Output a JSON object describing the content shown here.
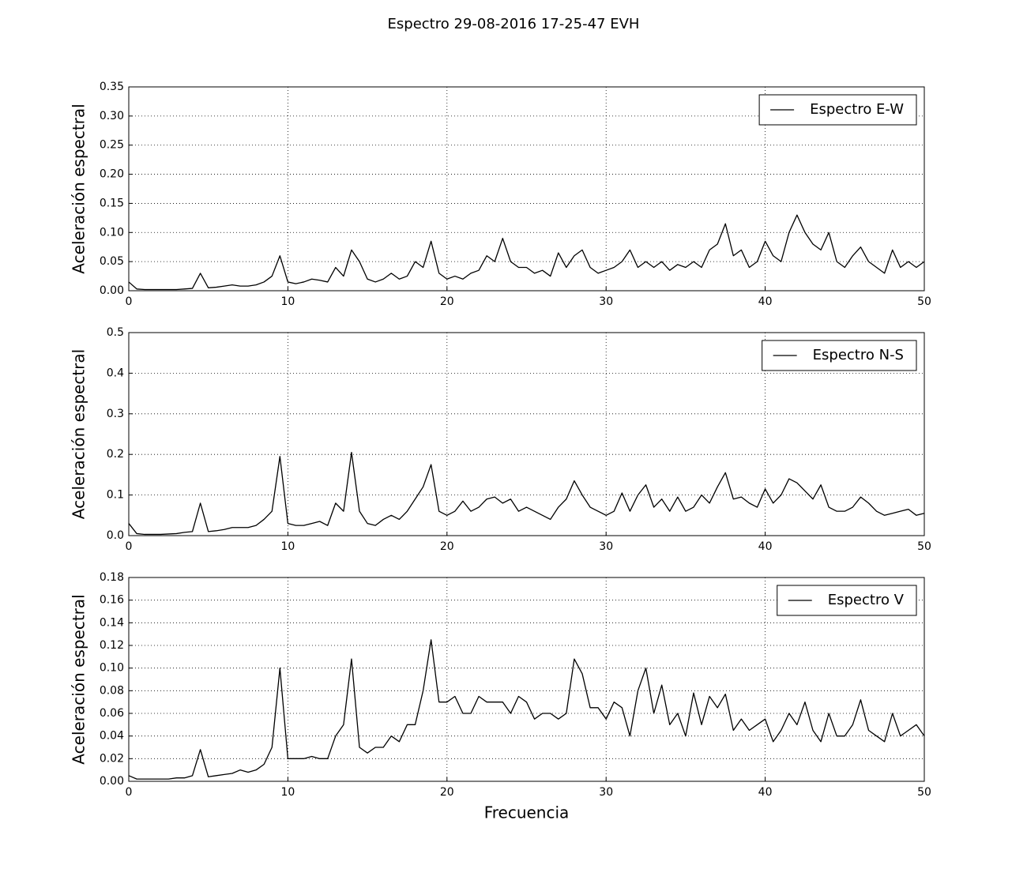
{
  "title": "Espectro 29-08-2016 17-25-47 EVH",
  "chart_data": [
    {
      "type": "line",
      "ylabel": "Aceleración espectral",
      "legend": "upper right",
      "grid": true,
      "x": [
        0,
        0.5,
        1,
        1.5,
        2,
        2.5,
        3,
        3.5,
        4,
        4.5,
        5,
        5.5,
        6,
        6.5,
        7,
        7.5,
        8,
        8.5,
        9,
        9.5,
        10,
        10.5,
        11,
        11.5,
        12,
        12.5,
        13,
        13.5,
        14,
        14.5,
        15,
        15.5,
        16,
        16.5,
        17,
        17.5,
        18,
        18.5,
        19,
        19.5,
        20,
        20.5,
        21,
        21.5,
        22,
        22.5,
        23,
        23.5,
        24,
        24.5,
        25,
        25.5,
        26,
        26.5,
        27,
        27.5,
        28,
        28.5,
        29,
        29.5,
        30,
        30.5,
        31,
        31.5,
        32,
        32.5,
        33,
        33.5,
        34,
        34.5,
        35,
        35.5,
        36,
        36.5,
        37,
        37.5,
        38,
        38.5,
        39,
        39.5,
        40,
        40.5,
        41,
        41.5,
        42,
        42.5,
        43,
        43.5,
        44,
        44.5,
        45,
        45.5,
        46,
        46.5,
        47,
        47.5,
        48,
        48.5,
        49,
        49.5,
        50
      ],
      "series": [
        {
          "name": "Espectro E-W",
          "color": "#000000",
          "values": [
            0.015,
            0.003,
            0.002,
            0.002,
            0.002,
            0.002,
            0.002,
            0.003,
            0.004,
            0.03,
            0.005,
            0.006,
            0.008,
            0.01,
            0.008,
            0.008,
            0.01,
            0.015,
            0.025,
            0.06,
            0.015,
            0.012,
            0.015,
            0.02,
            0.018,
            0.015,
            0.04,
            0.025,
            0.07,
            0.05,
            0.02,
            0.015,
            0.02,
            0.03,
            0.02,
            0.025,
            0.05,
            0.04,
            0.085,
            0.03,
            0.02,
            0.025,
            0.02,
            0.03,
            0.035,
            0.06,
            0.05,
            0.09,
            0.05,
            0.04,
            0.04,
            0.03,
            0.035,
            0.025,
            0.065,
            0.04,
            0.06,
            0.07,
            0.04,
            0.03,
            0.035,
            0.04,
            0.05,
            0.07,
            0.04,
            0.05,
            0.04,
            0.05,
            0.035,
            0.045,
            0.04,
            0.05,
            0.04,
            0.07,
            0.08,
            0.115,
            0.06,
            0.07,
            0.04,
            0.05,
            0.085,
            0.06,
            0.05,
            0.1,
            0.13,
            0.1,
            0.08,
            0.07,
            0.1,
            0.05,
            0.04,
            0.06,
            0.075,
            0.05,
            0.04,
            0.03,
            0.07,
            0.04,
            0.05,
            0.04,
            0.05
          ]
        }
      ],
      "xlim": [
        0,
        50
      ],
      "xticks": [
        0,
        10,
        20,
        30,
        40,
        50
      ],
      "ylim": [
        0,
        0.35
      ],
      "yticks": [
        {
          "value": 0,
          "label": "0.00"
        },
        {
          "value": 0.05,
          "label": "0.05"
        },
        {
          "value": 0.1,
          "label": "0.10"
        },
        {
          "value": 0.15,
          "label": "0.15"
        },
        {
          "value": 0.2,
          "label": "0.20"
        },
        {
          "value": 0.25,
          "label": "0.25"
        },
        {
          "value": 0.3,
          "label": "0.30"
        },
        {
          "value": 0.35,
          "label": "0.35"
        }
      ]
    },
    {
      "type": "line",
      "ylabel": "Aceleración espectral",
      "legend": "upper right",
      "grid": true,
      "x": [
        0,
        0.5,
        1,
        1.5,
        2,
        2.5,
        3,
        3.5,
        4,
        4.5,
        5,
        5.5,
        6,
        6.5,
        7,
        7.5,
        8,
        8.5,
        9,
        9.5,
        10,
        10.5,
        11,
        11.5,
        12,
        12.5,
        13,
        13.5,
        14,
        14.5,
        15,
        15.5,
        16,
        16.5,
        17,
        17.5,
        18,
        18.5,
        19,
        19.5,
        20,
        20.5,
        21,
        21.5,
        22,
        22.5,
        23,
        23.5,
        24,
        24.5,
        25,
        25.5,
        26,
        26.5,
        27,
        27.5,
        28,
        28.5,
        29,
        29.5,
        30,
        30.5,
        31,
        31.5,
        32,
        32.5,
        33,
        33.5,
        34,
        34.5,
        35,
        35.5,
        36,
        36.5,
        37,
        37.5,
        38,
        38.5,
        39,
        39.5,
        40,
        40.5,
        41,
        41.5,
        42,
        42.5,
        43,
        43.5,
        44,
        44.5,
        45,
        45.5,
        46,
        46.5,
        47,
        47.5,
        48,
        48.5,
        49,
        49.5,
        50
      ],
      "series": [
        {
          "name": "Espectro N-S",
          "color": "#000000",
          "values": [
            0.03,
            0.005,
            0.003,
            0.003,
            0.003,
            0.004,
            0.005,
            0.008,
            0.01,
            0.08,
            0.01,
            0.012,
            0.015,
            0.02,
            0.02,
            0.02,
            0.025,
            0.04,
            0.06,
            0.195,
            0.03,
            0.025,
            0.025,
            0.03,
            0.035,
            0.025,
            0.08,
            0.06,
            0.205,
            0.06,
            0.03,
            0.025,
            0.04,
            0.05,
            0.04,
            0.06,
            0.09,
            0.12,
            0.175,
            0.06,
            0.05,
            0.06,
            0.085,
            0.06,
            0.07,
            0.09,
            0.095,
            0.08,
            0.09,
            0.06,
            0.07,
            0.06,
            0.05,
            0.04,
            0.07,
            0.09,
            0.135,
            0.1,
            0.07,
            0.06,
            0.05,
            0.06,
            0.105,
            0.06,
            0.1,
            0.125,
            0.07,
            0.09,
            0.06,
            0.095,
            0.06,
            0.07,
            0.1,
            0.08,
            0.12,
            0.155,
            0.09,
            0.095,
            0.08,
            0.07,
            0.115,
            0.08,
            0.1,
            0.14,
            0.13,
            0.11,
            0.09,
            0.125,
            0.07,
            0.06,
            0.06,
            0.07,
            0.095,
            0.08,
            0.06,
            0.05,
            0.055,
            0.06,
            0.065,
            0.05,
            0.055
          ]
        }
      ],
      "xlim": [
        0,
        50
      ],
      "xticks": [
        0,
        10,
        20,
        30,
        40,
        50
      ],
      "ylim": [
        0,
        0.5
      ],
      "yticks": [
        {
          "value": 0,
          "label": "0.0"
        },
        {
          "value": 0.1,
          "label": "0.1"
        },
        {
          "value": 0.2,
          "label": "0.2"
        },
        {
          "value": 0.3,
          "label": "0.3"
        },
        {
          "value": 0.4,
          "label": "0.4"
        },
        {
          "value": 0.5,
          "label": "0.5"
        }
      ]
    },
    {
      "type": "line",
      "ylabel": "Aceleración espectral",
      "xlabel": "Frecuencia",
      "legend": "upper right",
      "grid": true,
      "x": [
        0,
        0.5,
        1,
        1.5,
        2,
        2.5,
        3,
        3.5,
        4,
        4.5,
        5,
        5.5,
        6,
        6.5,
        7,
        7.5,
        8,
        8.5,
        9,
        9.5,
        10,
        10.5,
        11,
        11.5,
        12,
        12.5,
        13,
        13.5,
        14,
        14.5,
        15,
        15.5,
        16,
        16.5,
        17,
        17.5,
        18,
        18.5,
        19,
        19.5,
        20,
        20.5,
        21,
        21.5,
        22,
        22.5,
        23,
        23.5,
        24,
        24.5,
        25,
        25.5,
        26,
        26.5,
        27,
        27.5,
        28,
        28.5,
        29,
        29.5,
        30,
        30.5,
        31,
        31.5,
        32,
        32.5,
        33,
        33.5,
        34,
        34.5,
        35,
        35.5,
        36,
        36.5,
        37,
        37.5,
        38,
        38.5,
        39,
        39.5,
        40,
        40.5,
        41,
        41.5,
        42,
        42.5,
        43,
        43.5,
        44,
        44.5,
        45,
        45.5,
        46,
        46.5,
        47,
        47.5,
        48,
        48.5,
        49,
        49.5,
        50
      ],
      "series": [
        {
          "name": "Espectro V",
          "color": "#000000",
          "values": [
            0.005,
            0.002,
            0.002,
            0.002,
            0.002,
            0.002,
            0.003,
            0.003,
            0.005,
            0.028,
            0.004,
            0.005,
            0.006,
            0.007,
            0.01,
            0.008,
            0.01,
            0.015,
            0.03,
            0.1,
            0.02,
            0.02,
            0.02,
            0.022,
            0.02,
            0.02,
            0.04,
            0.05,
            0.108,
            0.03,
            0.025,
            0.03,
            0.03,
            0.04,
            0.035,
            0.05,
            0.05,
            0.08,
            0.125,
            0.07,
            0.07,
            0.075,
            0.06,
            0.06,
            0.075,
            0.07,
            0.07,
            0.07,
            0.06,
            0.075,
            0.07,
            0.055,
            0.06,
            0.06,
            0.055,
            0.06,
            0.108,
            0.095,
            0.065,
            0.065,
            0.055,
            0.07,
            0.065,
            0.04,
            0.08,
            0.1,
            0.06,
            0.085,
            0.05,
            0.06,
            0.04,
            0.078,
            0.05,
            0.075,
            0.065,
            0.077,
            0.045,
            0.055,
            0.045,
            0.05,
            0.055,
            0.035,
            0.045,
            0.06,
            0.05,
            0.07,
            0.045,
            0.035,
            0.06,
            0.04,
            0.04,
            0.05,
            0.072,
            0.045,
            0.04,
            0.035,
            0.06,
            0.04,
            0.045,
            0.05,
            0.04
          ]
        }
      ],
      "xlim": [
        0,
        50
      ],
      "xticks": [
        0,
        10,
        20,
        30,
        40,
        50
      ],
      "ylim": [
        0,
        0.18
      ],
      "yticks": [
        {
          "value": 0,
          "label": "0.00"
        },
        {
          "value": 0.02,
          "label": "0.02"
        },
        {
          "value": 0.04,
          "label": "0.04"
        },
        {
          "value": 0.06,
          "label": "0.06"
        },
        {
          "value": 0.08,
          "label": "0.08"
        },
        {
          "value": 0.1,
          "label": "0.10"
        },
        {
          "value": 0.12,
          "label": "0.12"
        },
        {
          "value": 0.14,
          "label": "0.14"
        },
        {
          "value": 0.16,
          "label": "0.16"
        },
        {
          "value": 0.18,
          "label": "0.18"
        }
      ]
    }
  ]
}
